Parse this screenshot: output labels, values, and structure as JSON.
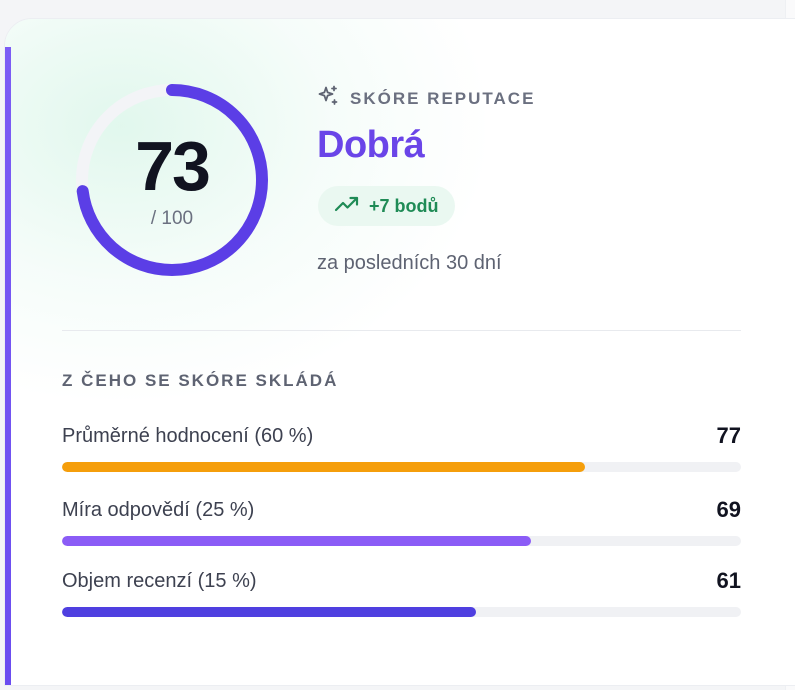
{
  "score": {
    "value": "73",
    "max_label": "/ 100",
    "fraction": 0.73,
    "ring_color": "#5b3ee6",
    "track_color": "#ffffff"
  },
  "header": {
    "eyebrow": "SKÓRE REPUTACE",
    "eyebrow_icon": "sparkles-icon",
    "rating": "Dobrá",
    "delta": "+7 bodů",
    "delta_icon": "trending-up-icon",
    "period": "za posledních 30 dní"
  },
  "breakdown": {
    "title": "Z ČEHO SE SKÓRE SKLÁDÁ",
    "items": [
      {
        "label": "Průměrné hodnocení (60 %)",
        "value": "77",
        "fraction": 0.77,
        "color": "#f59e0b"
      },
      {
        "label": "Míra odpovědí (25 %)",
        "value": "69",
        "fraction": 0.69,
        "color": "#8b5cf6"
      },
      {
        "label": "Objem recenzí (15 %)",
        "value": "61",
        "fraction": 0.61,
        "color": "#4f3fe0"
      }
    ]
  },
  "colors": {
    "accent": "#6a45e8",
    "positive": "#1f8b56",
    "positive_bg": "#eaf8f1"
  }
}
